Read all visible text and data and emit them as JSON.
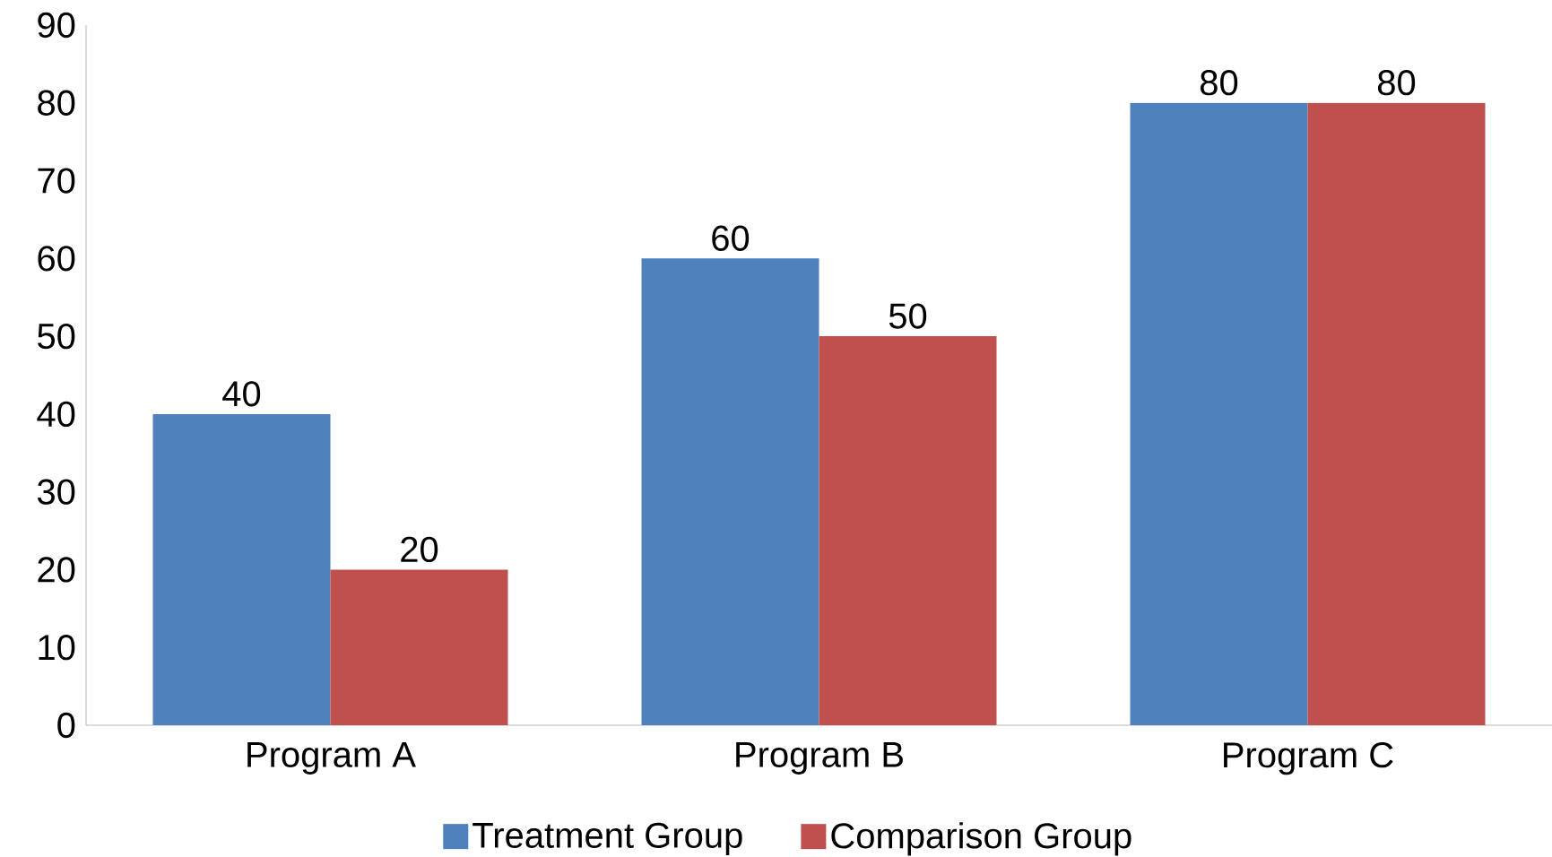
{
  "chart_data": {
    "type": "bar",
    "categories": [
      "Program A",
      "Program B",
      "Program C"
    ],
    "series": [
      {
        "name": "Treatment Group",
        "color": "#4f81bd",
        "values": [
          40,
          60,
          80
        ]
      },
      {
        "name": "Comparison Group",
        "color": "#c0504d",
        "values": [
          20,
          50,
          80
        ]
      }
    ],
    "ylim": [
      0,
      90
    ],
    "yticks": [
      0,
      10,
      20,
      30,
      40,
      50,
      60,
      70,
      80,
      90
    ],
    "data_labels": true,
    "legend": "bottom",
    "grid": false
  }
}
